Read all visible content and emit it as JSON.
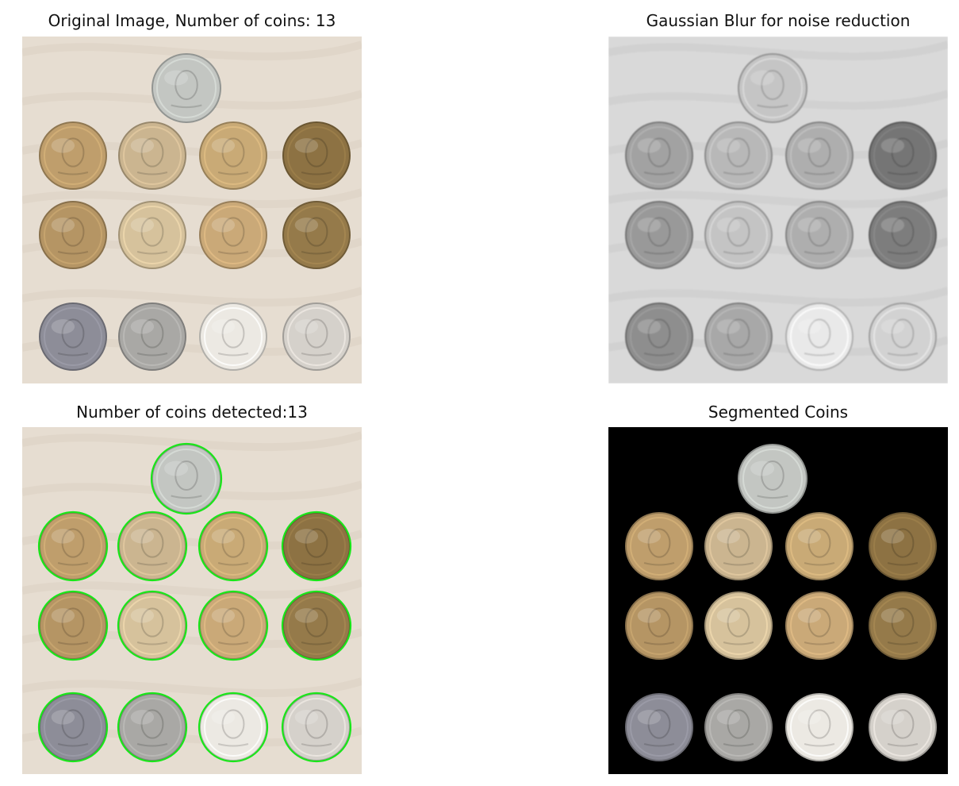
{
  "figure": {
    "panels": [
      {
        "id": "original",
        "title": "Original Image, Number of coins: 13",
        "style": "original"
      },
      {
        "id": "blur",
        "title": "Gaussian Blur for noise reduction",
        "style": "gray"
      },
      {
        "id": "detected",
        "title": "Number of coins detected:13",
        "style": "detected"
      },
      {
        "id": "segmented",
        "title": "Segmented Coins",
        "style": "segmented"
      }
    ],
    "coins": [
      {
        "row": 0,
        "col": 1.5,
        "metal": "silver",
        "tone": "#c3c6c2"
      },
      {
        "row": 1,
        "col": 0,
        "metal": "brass",
        "tone": "#bf9e6c"
      },
      {
        "row": 1,
        "col": 1,
        "metal": "brass-light",
        "tone": "#cbb590"
      },
      {
        "row": 1,
        "col": 2,
        "metal": "brass",
        "tone": "#c9aa76"
      },
      {
        "row": 1,
        "col": 3,
        "metal": "bronze",
        "tone": "#8d7243"
      },
      {
        "row": 2,
        "col": 0,
        "metal": "brass",
        "tone": "#b59564"
      },
      {
        "row": 2,
        "col": 1,
        "metal": "brass-light",
        "tone": "#d6c29c"
      },
      {
        "row": 2,
        "col": 2,
        "metal": "brass",
        "tone": "#caa978"
      },
      {
        "row": 2,
        "col": 3,
        "metal": "bronze",
        "tone": "#957a4a"
      },
      {
        "row": 3,
        "col": 0,
        "metal": "silver-dark",
        "tone": "#8d8d98"
      },
      {
        "row": 3,
        "col": 1,
        "metal": "silver",
        "tone": "#a9a8a5"
      },
      {
        "row": 3,
        "col": 2,
        "metal": "silver-bright",
        "tone": "#ece9e3"
      },
      {
        "row": 3,
        "col": 3,
        "metal": "silver",
        "tone": "#d5d1cb"
      }
    ],
    "colors": {
      "cloth": "#e6ddd1",
      "cloth_gray": "#d9d9d9",
      "segment_bg": "#000000",
      "detect_circle": "#19e619"
    }
  }
}
